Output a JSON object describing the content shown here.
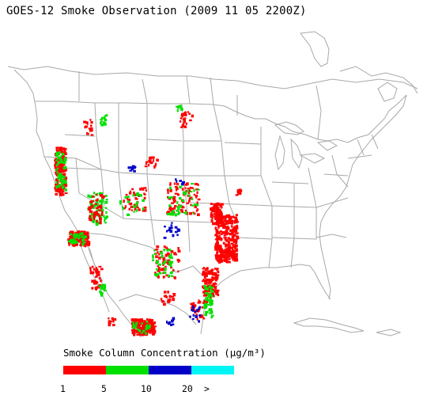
{
  "title": "GOES-12 Smoke Observation (2009 11 05  2200Z)",
  "legend": {
    "title": "Smoke Column Concentration (µg/m³)",
    "bins": [
      {
        "color": "#ff0000"
      },
      {
        "color": "#00e000"
      },
      {
        "color": "#0000c8"
      },
      {
        "color": "#00f5f5"
      }
    ],
    "ticks": [
      "1",
      "5",
      "10",
      "20",
      ">"
    ]
  },
  "map": {
    "boundary_color": "#aaaaaa",
    "smoke_regions": [
      {
        "level": 1,
        "region": "central California"
      },
      {
        "level": 1,
        "region": "southern California"
      },
      {
        "level": 1,
        "region": "eastern Texas / Louisiana"
      },
      {
        "level": 1,
        "region": "northern Mexico"
      },
      {
        "level": 1,
        "region": "Mexico near 20N 105W"
      },
      {
        "level": 2,
        "region": "Nevada / Utah"
      },
      {
        "level": 2,
        "region": "southern Texas"
      },
      {
        "level": 3,
        "region": "scattered Great Plains pixels"
      }
    ]
  }
}
